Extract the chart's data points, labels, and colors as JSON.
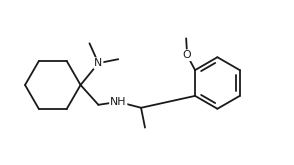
{
  "bg_color": "#ffffff",
  "bond_color": "#1a1a1a",
  "atom_color": "#1a1a1a",
  "figsize": [
    2.94,
    1.65
  ],
  "dpi": 100,
  "xlim": [
    0,
    294
  ],
  "ylim": [
    0,
    165
  ]
}
